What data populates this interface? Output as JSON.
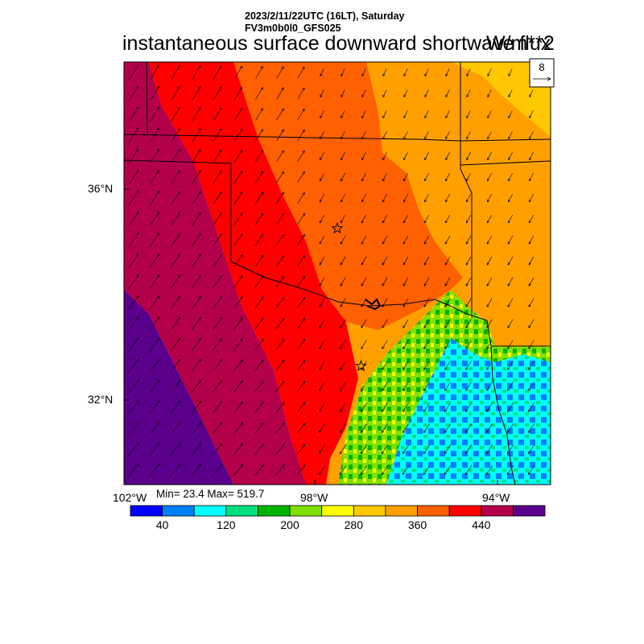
{
  "header": {
    "datetime": "2023/2/11/22UTC (16LT), Saturday",
    "model": "FV3m0b0l0_GFS025",
    "title": "instantaneous surface downward shortwave flux",
    "units": "W/m**2"
  },
  "map": {
    "lat_labels": [
      "36°N",
      "32°N"
    ],
    "lon_labels": [
      "102°W",
      "98°W",
      "94°W"
    ],
    "lat_ticks_deg": [
      36,
      32
    ],
    "lon_ticks_deg": [
      -102,
      -98,
      -94
    ],
    "extent_deg": {
      "lon_min": -102,
      "lon_max": -93,
      "lat_min": 30.5,
      "lat_max": 38.7
    },
    "cities": [
      {
        "lon": -97.5,
        "lat": 35.47
      },
      {
        "lon": -97.0,
        "lat": 32.8
      }
    ]
  },
  "vector_reference": {
    "value": "8"
  },
  "stats": {
    "text": "Min= 23.4 Max= 519.7"
  },
  "colorbar": {
    "colors": [
      "#0000ff",
      "#0080ff",
      "#00ffff",
      "#00e080",
      "#00b400",
      "#80e000",
      "#ffff00",
      "#ffc800",
      "#ffa000",
      "#ff6000",
      "#ff0000",
      "#b4004a",
      "#5a008c"
    ],
    "labels": [
      "40",
      "120",
      "200",
      "280",
      "360",
      "440"
    ],
    "levels": [
      40,
      120,
      200,
      280,
      360,
      440
    ]
  },
  "chart_data": {
    "type": "heatmap",
    "title": "instantaneous surface downward shortwave flux",
    "units": "W/m**2",
    "min": 23.4,
    "max": 519.7,
    "field_bands_southwest_to_northeast": [
      {
        "range": ">480",
        "color": "#5a008c"
      },
      {
        "range": "440-480",
        "color": "#b4004a"
      },
      {
        "range": "400-440",
        "color": "#ff0000"
      },
      {
        "range": "360-400",
        "color": "#ff6000"
      },
      {
        "range": "320-360",
        "color": "#ffa000"
      },
      {
        "range": "280-320",
        "color": "#ffc800"
      }
    ],
    "southeast_cloudy_region_range": "<40-280"
  }
}
